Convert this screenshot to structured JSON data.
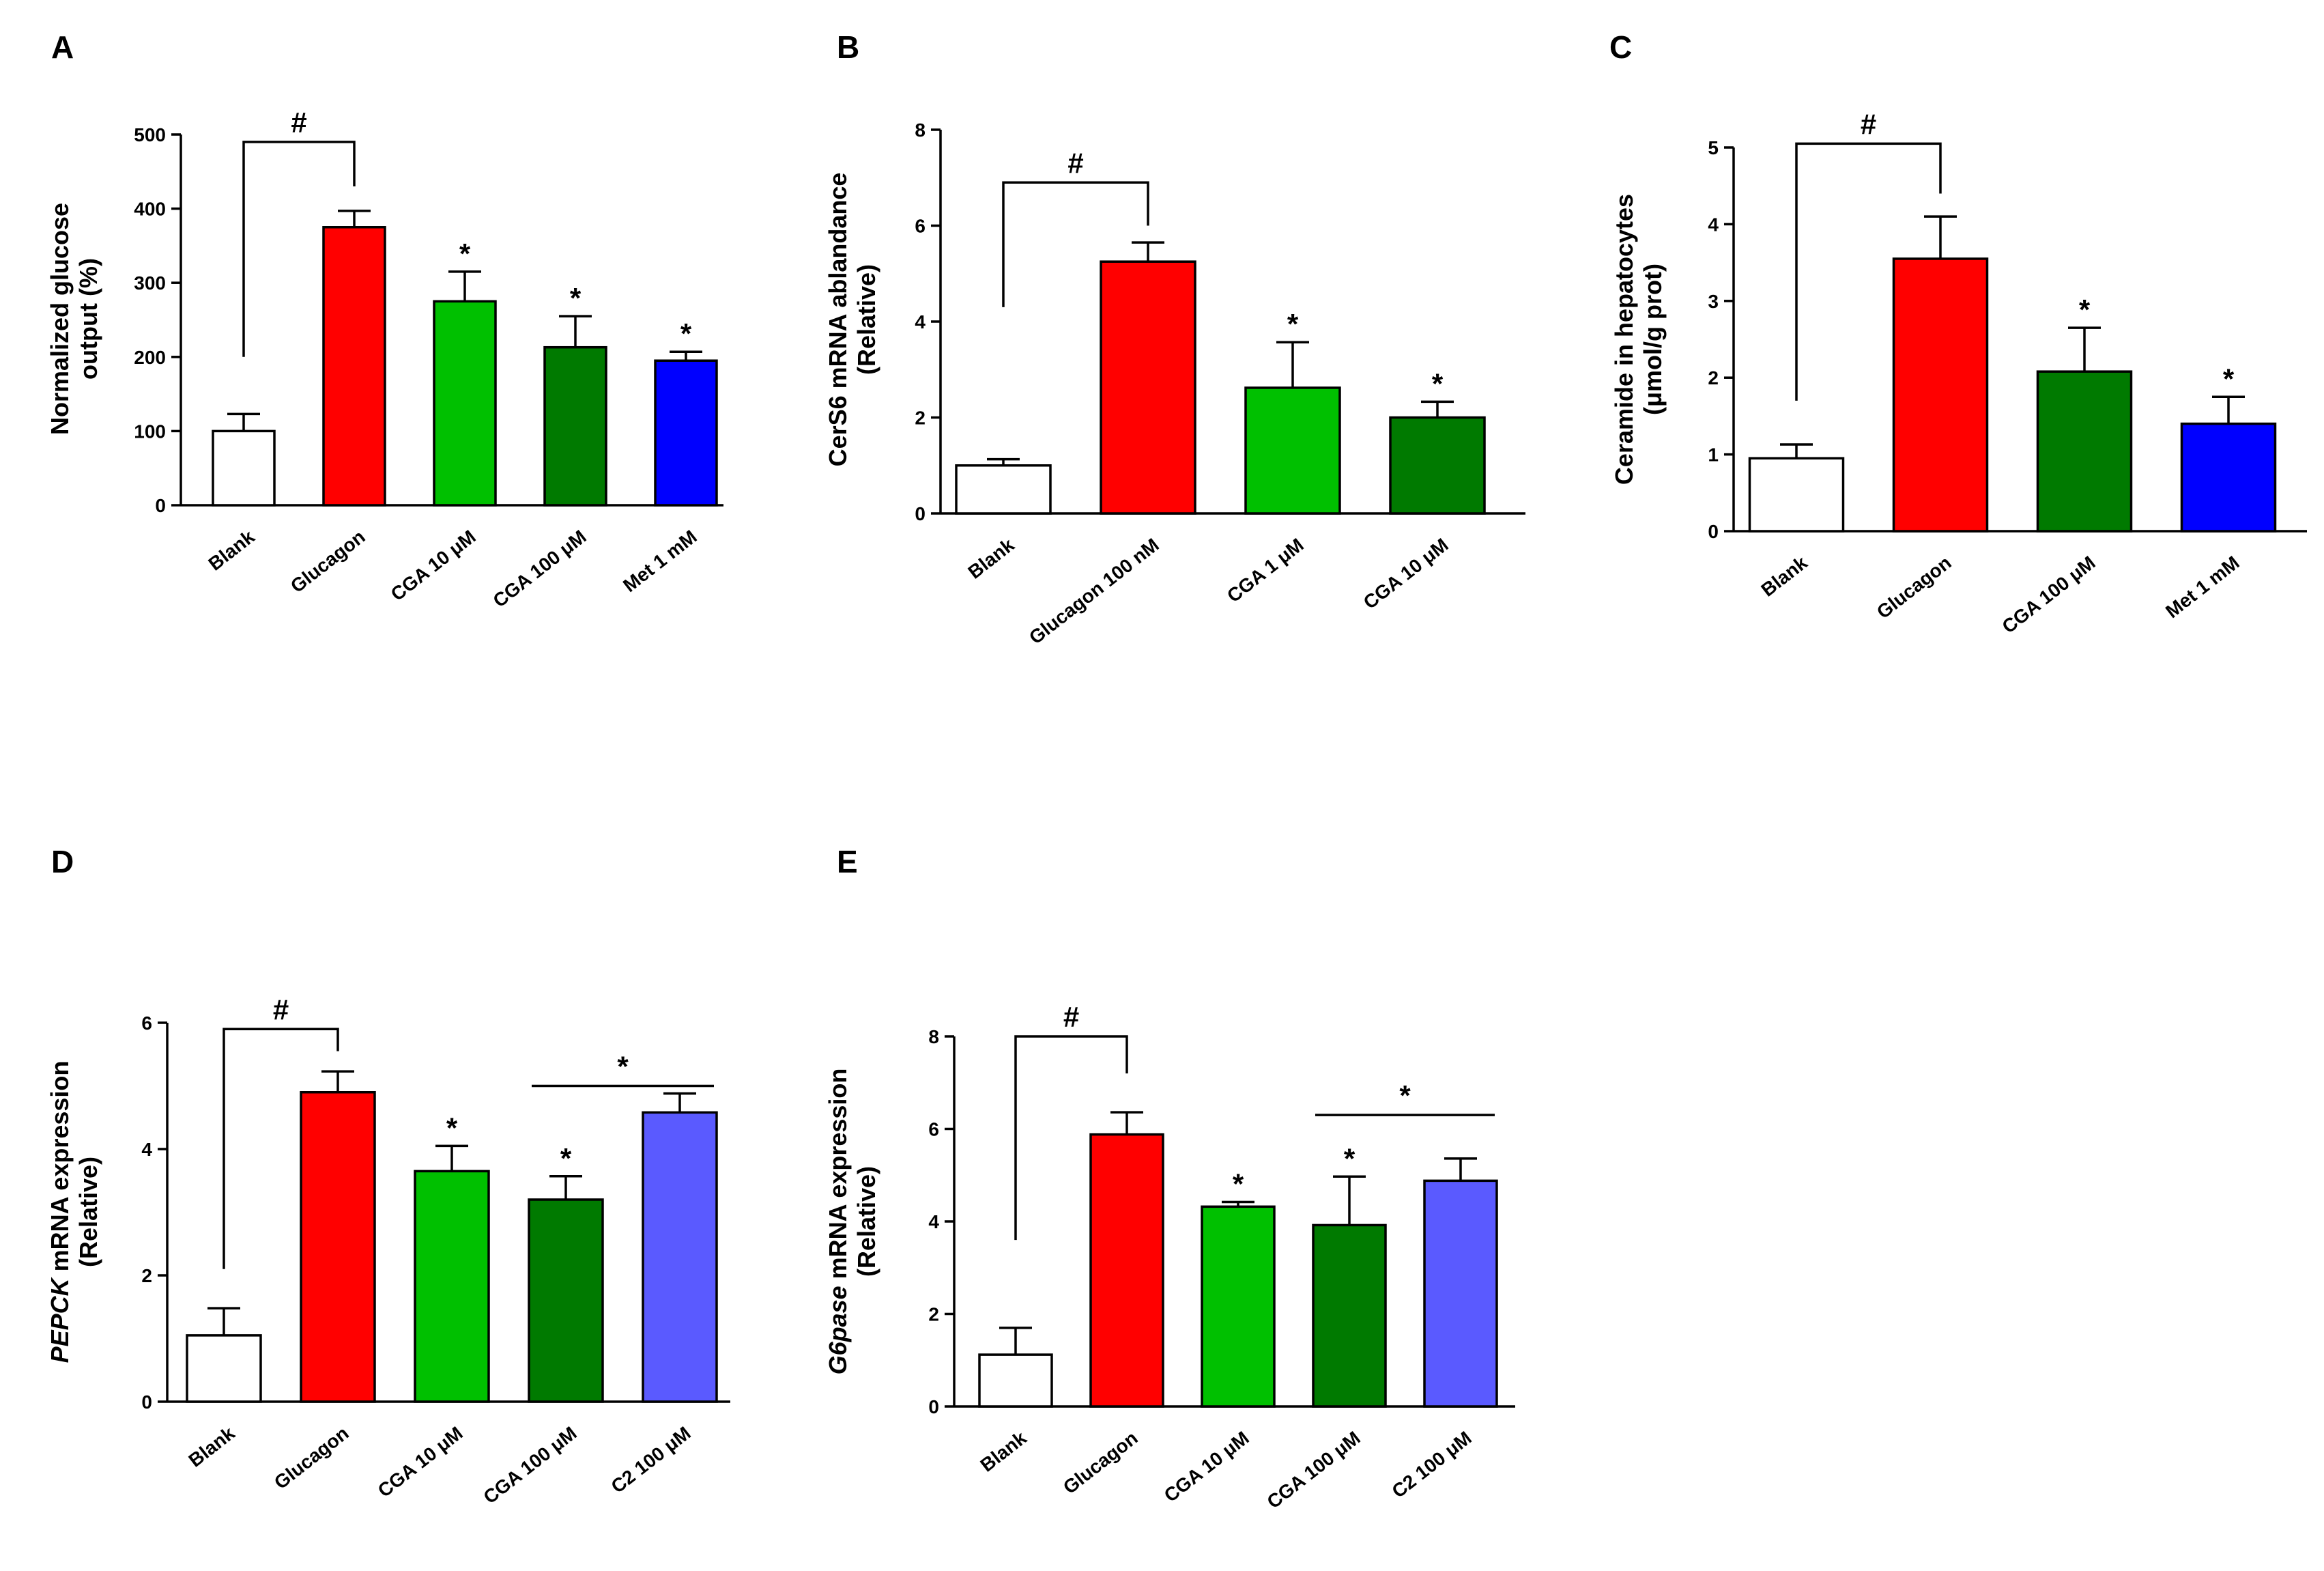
{
  "figure": {
    "panels": [
      "A",
      "B",
      "C",
      "D",
      "E"
    ]
  },
  "colors": {
    "blank": "#ffffff",
    "red": "#ff0000",
    "light_green": "#00c000",
    "dark_green": "#007a00",
    "blue": "#0000ff",
    "periwinkle": "#5a5aff"
  },
  "chart_data": [
    {
      "panel": "A",
      "type": "bar",
      "ylabel": [
        "Normalized glucose",
        "output (%)"
      ],
      "ylim": [
        0,
        500
      ],
      "yticks": [
        0,
        100,
        200,
        300,
        400,
        500
      ],
      "categories": [
        "Blank",
        "Glucagon",
        "CGA 10 μM",
        "CGA 100 μM",
        "Met 1 mM"
      ],
      "values": [
        100,
        375,
        275,
        213,
        195
      ],
      "errors": [
        23,
        22,
        40,
        42,
        12
      ],
      "colors": [
        "blank",
        "red",
        "light_green",
        "dark_green",
        "blue"
      ],
      "stars": [
        "",
        "",
        "*",
        "*",
        "*"
      ],
      "brackets": [
        {
          "from": 0,
          "to": 1,
          "label": "#",
          "y": 490,
          "left_drop": 200,
          "right_drop": 430
        }
      ]
    },
    {
      "panel": "B",
      "type": "bar",
      "ylabel": [
        "CerS6 mRNA ablandance",
        "(Relative)"
      ],
      "ylim": [
        0,
        8
      ],
      "yticks": [
        0,
        2,
        4,
        6,
        8
      ],
      "categories": [
        "Blank",
        "Glucagon 100 nM",
        "CGA 1 μM",
        "CGA 10 μM"
      ],
      "values": [
        1.0,
        5.25,
        2.62,
        2.0
      ],
      "errors": [
        0.13,
        0.4,
        0.95,
        0.33
      ],
      "colors": [
        "blank",
        "red",
        "light_green",
        "dark_green"
      ],
      "stars": [
        "",
        "",
        "*",
        "*"
      ],
      "brackets": [
        {
          "from": 0,
          "to": 1,
          "label": "#",
          "y": 6.9,
          "left_drop": 4.3,
          "right_drop": 6.0
        }
      ]
    },
    {
      "panel": "C",
      "type": "bar",
      "ylabel": [
        "Ceramide in hepatocytes",
        "(μmol/g prot)"
      ],
      "ylim": [
        0,
        5
      ],
      "yticks": [
        0,
        1,
        2,
        3,
        4,
        5
      ],
      "categories": [
        "Blank",
        "Glucagon",
        "CGA 100 μM",
        "Met 1 mM"
      ],
      "values": [
        0.95,
        3.55,
        2.08,
        1.4
      ],
      "errors": [
        0.18,
        0.55,
        0.57,
        0.35
      ],
      "colors": [
        "blank",
        "red",
        "dark_green",
        "blue"
      ],
      "stars": [
        "",
        "",
        "*",
        "*"
      ],
      "brackets": [
        {
          "from": 0,
          "to": 1,
          "label": "#",
          "y": 5.05,
          "left_drop": 1.7,
          "right_drop": 4.4
        }
      ]
    },
    {
      "panel": "D",
      "type": "bar",
      "ylabel_parts": [
        {
          "text": "PEPCK",
          "italic": true
        },
        {
          "text": " mRNA expression",
          "italic": false
        }
      ],
      "ylabel_line2": "(Relative)",
      "ylim": [
        0,
        6
      ],
      "yticks": [
        0,
        2,
        4,
        6
      ],
      "categories": [
        "Blank",
        "Glucagon",
        "CGA 10 μM",
        "CGA 100 μM",
        "C2 100 μM"
      ],
      "values": [
        1.05,
        4.9,
        3.65,
        3.2,
        4.58
      ],
      "errors": [
        0.43,
        0.33,
        0.4,
        0.37,
        0.3
      ],
      "colors": [
        "blank",
        "red",
        "light_green",
        "dark_green",
        "periwinkle"
      ],
      "stars": [
        "",
        "",
        "*",
        "*",
        ""
      ],
      "brackets": [
        {
          "from": 0,
          "to": 1,
          "label": "#",
          "y": 5.9,
          "left_drop": 2.1,
          "right_drop": 5.55
        }
      ],
      "lines": [
        {
          "from": 3,
          "to": 4,
          "label": "*",
          "y": 5.0
        }
      ]
    },
    {
      "panel": "E",
      "type": "bar",
      "ylabel_parts": [
        {
          "text": "G6pase",
          "italic": true
        },
        {
          "text": " mRNA expression",
          "italic": false
        }
      ],
      "ylabel_line2": "(Relative)",
      "ylim": [
        0,
        8
      ],
      "yticks": [
        0,
        2,
        4,
        6,
        8
      ],
      "categories": [
        "Blank",
        "Glucagon",
        "CGA 10 μM",
        "CGA 100 μM",
        "C2 100 μM"
      ],
      "values": [
        1.12,
        5.88,
        4.32,
        3.92,
        4.88
      ],
      "errors": [
        0.58,
        0.48,
        0.1,
        1.05,
        0.48
      ],
      "colors": [
        "blank",
        "red",
        "light_green",
        "dark_green",
        "periwinkle"
      ],
      "stars": [
        "",
        "",
        "*",
        "*",
        ""
      ],
      "brackets": [
        {
          "from": 0,
          "to": 1,
          "label": "#",
          "y": 8.0,
          "left_drop": 3.6,
          "right_drop": 7.2
        }
      ],
      "lines": [
        {
          "from": 3,
          "to": 4,
          "label": "*",
          "y": 6.3
        }
      ]
    }
  ]
}
